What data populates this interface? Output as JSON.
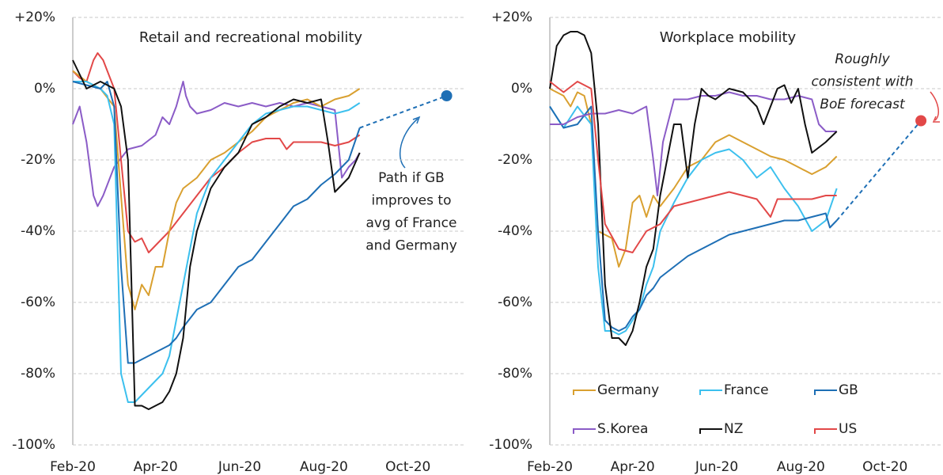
{
  "chart_data": [
    {
      "type": "line",
      "title": "Retail and recreational mobility",
      "xlim": [
        0,
        285
      ],
      "ylim": [
        -100,
        20
      ],
      "xticks": [
        {
          "value": 0,
          "label": "Feb-20"
        },
        {
          "value": 60,
          "label": "Apr-20"
        },
        {
          "value": 121,
          "label": "Jun-20"
        },
        {
          "value": 182,
          "label": "Aug-20"
        },
        {
          "value": 243,
          "label": "Oct-20"
        }
      ],
      "yticks": [
        {
          "value": 20,
          "label": "+20%"
        },
        {
          "value": 0,
          "label": "0%"
        },
        {
          "value": -20,
          "label": "-20%"
        },
        {
          "value": -40,
          "label": "-40%"
        },
        {
          "value": -60,
          "label": "-60%"
        },
        {
          "value": -80,
          "label": "-80%"
        },
        {
          "value": -100,
          "label": "-100%"
        }
      ],
      "grid": true,
      "series": [
        {
          "name": "S.Korea",
          "color": "#8b5cc7",
          "x": [
            0,
            5,
            10,
            15,
            18,
            22,
            30,
            40,
            50,
            60,
            65,
            70,
            75,
            80,
            82,
            85,
            90,
            100,
            110,
            120,
            130,
            140,
            150,
            160,
            170,
            180,
            190,
            195,
            200,
            205,
            208
          ],
          "values": [
            -10,
            -5,
            -15,
            -30,
            -33,
            -30,
            -22,
            -17,
            -16,
            -13,
            -8,
            -10,
            -5,
            2,
            -2,
            -5,
            -7,
            -6,
            -4,
            -5,
            -4,
            -5,
            -4,
            -5,
            -4,
            -5,
            -6,
            -25,
            -22,
            -20,
            -18
          ]
        },
        {
          "name": "US",
          "color": "#e24848",
          "x": [
            0,
            5,
            10,
            15,
            18,
            22,
            30,
            35,
            40,
            45,
            50,
            55,
            60,
            70,
            80,
            90,
            100,
            110,
            120,
            130,
            140,
            150,
            155,
            160,
            170,
            180,
            190,
            200,
            208
          ],
          "values": [
            5,
            3,
            2,
            8,
            10,
            8,
            0,
            -20,
            -40,
            -43,
            -42,
            -46,
            -44,
            -40,
            -35,
            -30,
            -25,
            -22,
            -18,
            -15,
            -14,
            -14,
            -17,
            -15,
            -15,
            -15,
            -16,
            -15,
            -13
          ]
        },
        {
          "name": "Germany",
          "color": "#d9a030",
          "x": [
            0,
            10,
            20,
            30,
            35,
            40,
            45,
            50,
            55,
            60,
            65,
            70,
            75,
            80,
            90,
            100,
            110,
            120,
            130,
            140,
            150,
            160,
            170,
            180,
            190,
            200,
            208
          ],
          "values": [
            5,
            2,
            0,
            -5,
            -30,
            -55,
            -62,
            -55,
            -58,
            -50,
            -50,
            -40,
            -32,
            -28,
            -25,
            -20,
            -18,
            -15,
            -12,
            -8,
            -6,
            -4,
            -3,
            -5,
            -3,
            -2,
            0
          ]
        },
        {
          "name": "France",
          "color": "#3cc0ee",
          "x": [
            0,
            10,
            20,
            25,
            30,
            35,
            40,
            45,
            50,
            55,
            60,
            65,
            70,
            75,
            80,
            85,
            90,
            100,
            110,
            120,
            130,
            140,
            150,
            160,
            170,
            180,
            190,
            200,
            208
          ],
          "values": [
            2,
            2,
            0,
            -2,
            -10,
            -80,
            -88,
            -88,
            -86,
            -84,
            -82,
            -80,
            -75,
            -65,
            -55,
            -45,
            -35,
            -25,
            -20,
            -15,
            -10,
            -7,
            -6,
            -5,
            -5,
            -6,
            -7,
            -6,
            -4
          ]
        },
        {
          "name": "GB",
          "color": "#1e6fb5",
          "x": [
            0,
            10,
            20,
            25,
            30,
            35,
            40,
            45,
            50,
            55,
            60,
            65,
            70,
            75,
            80,
            90,
            100,
            110,
            120,
            130,
            140,
            150,
            160,
            170,
            180,
            190,
            200,
            208
          ],
          "values": [
            2,
            1,
            0,
            2,
            -5,
            -50,
            -77,
            -77,
            -76,
            -75,
            -74,
            -73,
            -72,
            -70,
            -67,
            -62,
            -60,
            -55,
            -50,
            -48,
            -43,
            -38,
            -33,
            -31,
            -27,
            -24,
            -20,
            -11
          ]
        },
        {
          "name": "NZ",
          "color": "#111111",
          "x": [
            0,
            10,
            20,
            30,
            35,
            40,
            45,
            50,
            55,
            60,
            65,
            70,
            75,
            80,
            85,
            90,
            100,
            110,
            120,
            130,
            140,
            150,
            160,
            170,
            180,
            185,
            190,
            195,
            200,
            208
          ],
          "values": [
            8,
            0,
            2,
            0,
            -5,
            -20,
            -89,
            -89,
            -90,
            -89,
            -88,
            -85,
            -80,
            -70,
            -50,
            -40,
            -28,
            -22,
            -18,
            -10,
            -8,
            -5,
            -3,
            -4,
            -3,
            -15,
            -29,
            -27,
            -25,
            -18
          ]
        }
      ],
      "projection": {
        "color": "#1e6fb5",
        "x": [
          208,
          271
        ],
        "values": [
          -11,
          -2
        ]
      },
      "annotation": {
        "color": "#1e6fb5",
        "lines": [
          "Path if GB",
          "improves to",
          "avg of France",
          "and Germany"
        ]
      }
    },
    {
      "type": "line",
      "title": "Workplace mobility",
      "xlim": [
        0,
        285
      ],
      "ylim": [
        -100,
        20
      ],
      "xticks": [
        {
          "value": 0,
          "label": "Feb-20"
        },
        {
          "value": 60,
          "label": "Apr-20"
        },
        {
          "value": 121,
          "label": "Jun-20"
        },
        {
          "value": 182,
          "label": "Aug-20"
        },
        {
          "value": 243,
          "label": "Oct-20"
        }
      ],
      "yticks": [
        {
          "value": 20,
          "label": "+20%"
        },
        {
          "value": 0,
          "label": "0%"
        },
        {
          "value": -20,
          "label": "-20%"
        },
        {
          "value": -40,
          "label": "-40%"
        },
        {
          "value": -60,
          "label": "-60%"
        },
        {
          "value": -80,
          "label": "-80%"
        },
        {
          "value": -100,
          "label": "-100%"
        }
      ],
      "grid": true,
      "legend": "bottom",
      "series": [
        {
          "name": "Germany",
          "color": "#d9a030",
          "x": [
            0,
            10,
            15,
            20,
            25,
            30,
            35,
            40,
            45,
            50,
            55,
            60,
            65,
            70,
            75,
            80,
            90,
            100,
            110,
            120,
            130,
            140,
            150,
            160,
            170,
            180,
            190,
            200,
            208
          ],
          "values": [
            0,
            -2,
            -5,
            -1,
            -2,
            -10,
            -40,
            -41,
            -42,
            -50,
            -45,
            -32,
            -30,
            -36,
            -30,
            -33,
            -28,
            -22,
            -20,
            -15,
            -13,
            -15,
            -17,
            -19,
            -20,
            -22,
            -24,
            -22,
            -19
          ]
        },
        {
          "name": "France",
          "color": "#3cc0ee",
          "x": [
            0,
            10,
            20,
            30,
            35,
            40,
            45,
            50,
            55,
            60,
            65,
            70,
            75,
            80,
            90,
            100,
            110,
            120,
            130,
            140,
            150,
            160,
            170,
            180,
            190,
            200,
            208
          ],
          "values": [
            -5,
            -11,
            -5,
            -10,
            -50,
            -68,
            -68,
            -69,
            -68,
            -65,
            -62,
            -55,
            -50,
            -40,
            -32,
            -25,
            -20,
            -18,
            -17,
            -20,
            -25,
            -22,
            -28,
            -33,
            -40,
            -37,
            -28
          ]
        },
        {
          "name": "GB",
          "color": "#1e6fb5",
          "x": [
            0,
            10,
            20,
            30,
            35,
            40,
            45,
            50,
            55,
            60,
            65,
            70,
            75,
            80,
            90,
            100,
            110,
            120,
            130,
            140,
            150,
            160,
            170,
            180,
            190,
            200,
            203,
            208
          ],
          "values": [
            -5,
            -11,
            -10,
            -5,
            -40,
            -65,
            -67,
            -68,
            -67,
            -64,
            -62,
            -58,
            -56,
            -53,
            -50,
            -47,
            -45,
            -43,
            -41,
            -40,
            -39,
            -38,
            -37,
            -37,
            -36,
            -35,
            -39,
            -37
          ]
        },
        {
          "name": "S.Korea",
          "color": "#8b5cc7",
          "x": [
            0,
            10,
            20,
            30,
            40,
            50,
            60,
            70,
            75,
            78,
            82,
            90,
            100,
            110,
            120,
            130,
            140,
            150,
            160,
            170,
            180,
            190,
            195,
            200,
            208
          ],
          "values": [
            -10,
            -10,
            -8,
            -7,
            -7,
            -6,
            -7,
            -5,
            -20,
            -30,
            -15,
            -3,
            -3,
            -2,
            -2,
            -1,
            -2,
            -2,
            -3,
            -3,
            -2,
            -3,
            -10,
            -12,
            -12
          ]
        },
        {
          "name": "NZ",
          "color": "#111111",
          "x": [
            0,
            5,
            10,
            15,
            20,
            25,
            30,
            35,
            40,
            45,
            50,
            55,
            60,
            65,
            70,
            75,
            80,
            85,
            90,
            95,
            100,
            105,
            110,
            115,
            120,
            130,
            140,
            150,
            155,
            160,
            165,
            170,
            175,
            180,
            185,
            190,
            200,
            208
          ],
          "values": [
            0,
            12,
            15,
            16,
            16,
            15,
            10,
            -10,
            -55,
            -70,
            -70,
            -72,
            -68,
            -60,
            -50,
            -45,
            -30,
            -20,
            -10,
            -10,
            -25,
            -10,
            0,
            -2,
            -3,
            0,
            -1,
            -5,
            -10,
            -5,
            0,
            1,
            -4,
            0,
            -10,
            -18,
            -15,
            -12
          ]
        },
        {
          "name": "US",
          "color": "#e24848",
          "x": [
            0,
            10,
            20,
            30,
            35,
            40,
            50,
            60,
            70,
            80,
            90,
            100,
            110,
            120,
            130,
            140,
            150,
            160,
            165,
            170,
            180,
            190,
            200,
            208
          ],
          "values": [
            2,
            -1,
            2,
            0,
            -20,
            -38,
            -45,
            -46,
            -40,
            -38,
            -33,
            -32,
            -31,
            -30,
            -29,
            -30,
            -31,
            -36,
            -31,
            -31,
            -31,
            -31,
            -30,
            -30
          ]
        }
      ],
      "projection": {
        "color": "#1e6fb5",
        "dot_color": "#e24848",
        "x": [
          208,
          269
        ],
        "values": [
          -37,
          -9
        ]
      },
      "annotation": {
        "color": "#e24848",
        "lines": [
          "Roughly",
          "consistent with",
          "BoE forecast"
        ]
      }
    }
  ]
}
